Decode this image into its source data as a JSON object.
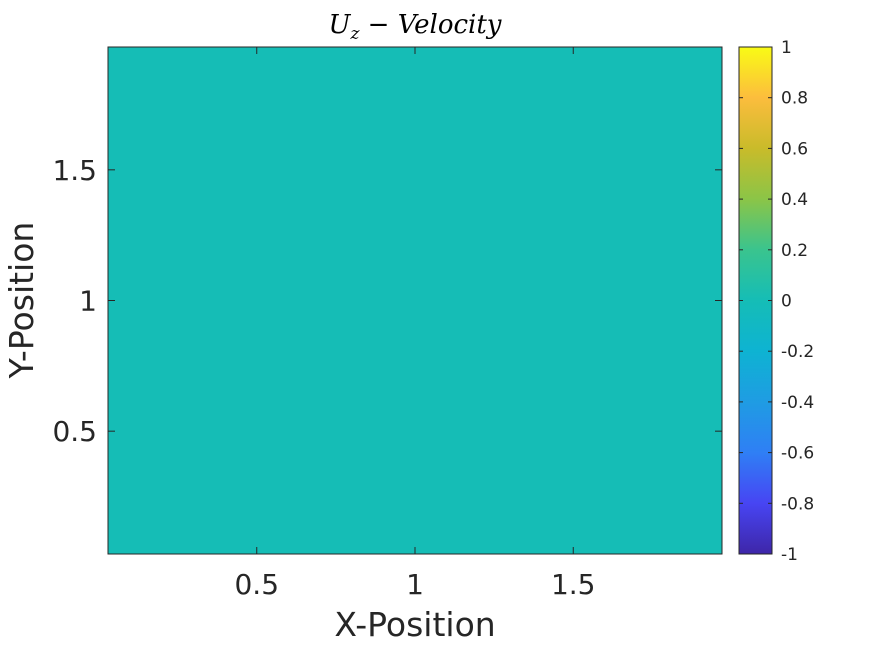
{
  "chart_data": {
    "type": "heatmap",
    "title": "U_z - Velocity",
    "title_parts": {
      "base": "U",
      "subscript": "z",
      "rest": " − Velocity"
    },
    "xlabel": "X-Position",
    "ylabel": "Y-Position",
    "xlim": [
      0.03,
      1.97
    ],
    "ylim": [
      0.03,
      1.97
    ],
    "xticks": [
      0.5,
      1,
      1.5
    ],
    "xtick_labels": [
      "0.5",
      "1",
      "1.5"
    ],
    "yticks": [
      0.5,
      1,
      1.5
    ],
    "ytick_labels": [
      "0.5",
      "1",
      "1.5"
    ],
    "field_value": 0,
    "field_color": "#15bdb6",
    "grid": false,
    "colorbar": {
      "location": "right",
      "limits": [
        -1,
        1
      ],
      "ticks": [
        -1,
        -0.8,
        -0.6,
        -0.4,
        -0.2,
        0,
        0.2,
        0.4,
        0.6,
        0.8,
        1
      ],
      "tick_labels": [
        "-1",
        "-0.8",
        "-0.6",
        "-0.4",
        "-0.2",
        "0",
        "0.2",
        "0.4",
        "0.6",
        "0.8",
        "1"
      ],
      "colormap": "parula",
      "colormap_stops": [
        "#3e26a8",
        "#4745f3",
        "#2f7ff5",
        "#1f9ce3",
        "#0eb3d2",
        "#15bdb6",
        "#3ac48e",
        "#8bc547",
        "#c9bb2a",
        "#fcbd3d",
        "#f9fb15"
      ]
    }
  }
}
